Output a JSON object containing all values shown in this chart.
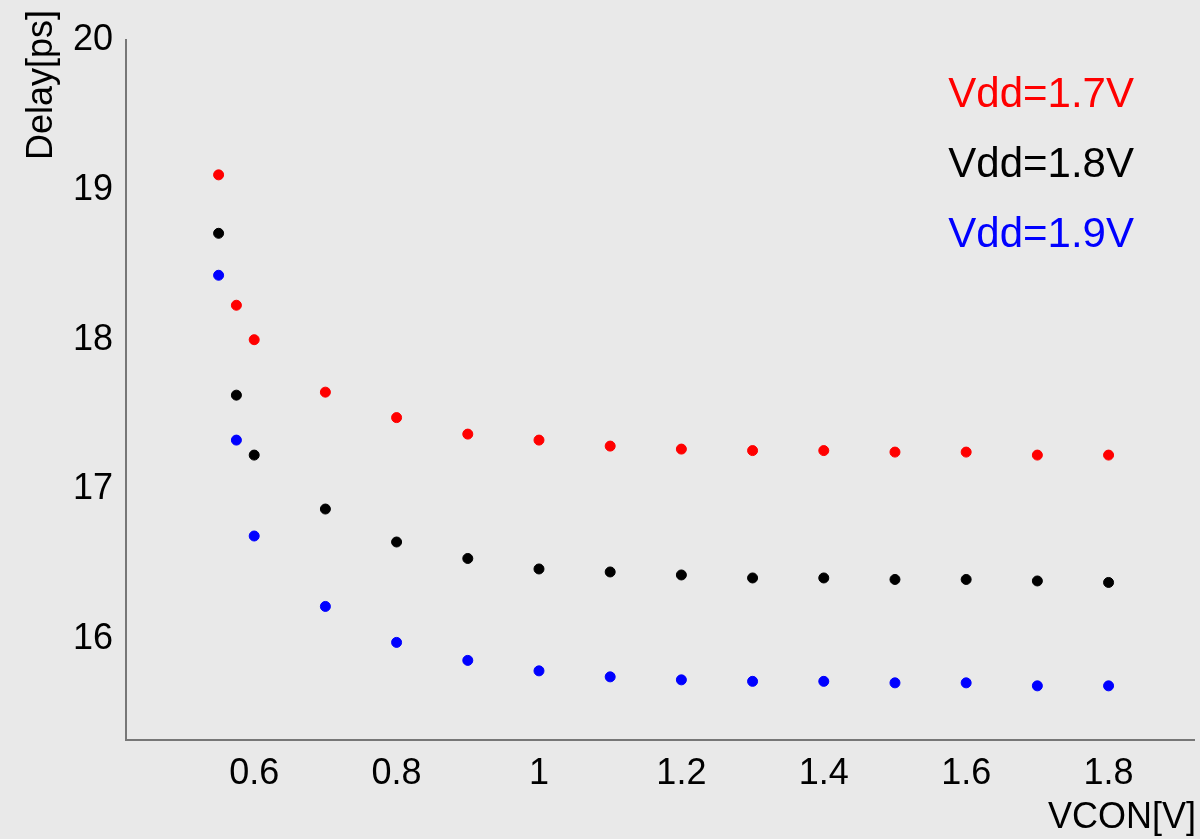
{
  "chart_data": {
    "type": "scatter",
    "xlabel": "VCON[V]",
    "ylabel": "Delay[ps]",
    "xlim": [
      0.42,
      1.92
    ],
    "ylim": [
      15.33,
      20
    ],
    "xticks": [
      0.6,
      0.8,
      1,
      1.2,
      1.4,
      1.6,
      1.8
    ],
    "yticks": [
      16,
      17,
      18,
      19,
      20
    ],
    "grid": false,
    "legend": "top right",
    "marker": "circle",
    "x": [
      0.55,
      0.575,
      0.6,
      0.7,
      0.8,
      0.9,
      1.0,
      1.1,
      1.2,
      1.3,
      1.4,
      1.5,
      1.6,
      1.7,
      1.8
    ],
    "series": [
      {
        "name": "Vdd=1.7V",
        "color": "#ff0000",
        "values": [
          19.1,
          18.23,
          18.0,
          17.65,
          17.48,
          17.37,
          17.33,
          17.29,
          17.27,
          17.26,
          17.26,
          17.25,
          17.25,
          17.23,
          17.23
        ]
      },
      {
        "name": "Vdd=1.8V",
        "color": "#000000",
        "values": [
          18.71,
          17.63,
          17.23,
          16.87,
          16.65,
          16.54,
          16.47,
          16.45,
          16.43,
          16.41,
          16.41,
          16.4,
          16.4,
          16.39,
          16.38
        ]
      },
      {
        "name": "Vdd=1.9V",
        "color": "#0000ff",
        "values": [
          18.43,
          17.33,
          16.69,
          16.22,
          15.98,
          15.86,
          15.79,
          15.75,
          15.73,
          15.72,
          15.72,
          15.71,
          15.71,
          15.69,
          15.69
        ]
      }
    ]
  }
}
